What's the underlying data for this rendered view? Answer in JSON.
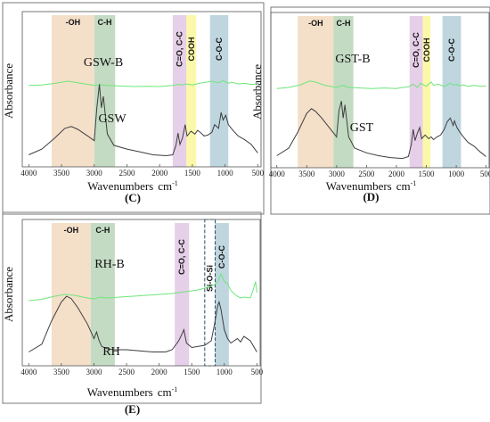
{
  "chart_data": [
    {
      "id": "C",
      "type": "line",
      "panel_label": "(C)",
      "xlabel": "Wavenumbers",
      "xunit": "cm",
      "xunit_sup": "-1",
      "ylabel": "Absorbance",
      "xlim": [
        4100,
        450
      ],
      "x_reversed": true,
      "ticks": [
        4000,
        3500,
        3000,
        2500,
        2000,
        1500,
        1000,
        500
      ],
      "tick_labels": [
        "4000",
        "3500",
        "3000",
        "2500",
        "2000",
        "1500",
        "1000",
        "500"
      ],
      "bands": [
        {
          "label": "-OH",
          "from": 3650,
          "to": 3000,
          "color": "#f3dcc3",
          "vertical": false
        },
        {
          "label": "C-H",
          "from": 3000,
          "to": 2680,
          "color": "#bcd7bd",
          "vertical": false
        },
        {
          "label": "C=O, C-C",
          "from": 1800,
          "to": 1590,
          "color": "#e3cae6",
          "vertical": true
        },
        {
          "label": "COOH",
          "from": 1590,
          "to": 1440,
          "color": "#fbf7a0",
          "vertical": true
        },
        {
          "label": "C-O-C",
          "from": 1230,
          "to": 950,
          "color": "#b8d2db",
          "vertical": true
        }
      ],
      "series": [
        {
          "name": "GSW-B",
          "color": "#6ee67a",
          "x": [
            4000,
            3800,
            3600,
            3400,
            3200,
            3000,
            2900,
            2800,
            2600,
            2400,
            2200,
            2000,
            1900,
            1800,
            1720,
            1650,
            1600,
            1500,
            1400,
            1300,
            1200,
            1100,
            1030,
            950,
            900,
            800,
            700,
            600,
            500
          ],
          "y": [
            0.72,
            0.73,
            0.76,
            0.8,
            0.76,
            0.72,
            0.735,
            0.72,
            0.71,
            0.7,
            0.705,
            0.7,
            0.71,
            0.72,
            0.74,
            0.73,
            0.75,
            0.73,
            0.76,
            0.78,
            0.8,
            0.77,
            0.81,
            0.76,
            0.78,
            0.75,
            0.76,
            0.74,
            0.75
          ]
        },
        {
          "name": "GSW",
          "color": "#3d3d3d",
          "x": [
            4000,
            3800,
            3600,
            3450,
            3350,
            3250,
            3100,
            3000,
            2960,
            2920,
            2890,
            2860,
            2800,
            2700,
            2500,
            2300,
            2100,
            1900,
            1800,
            1750,
            1720,
            1690,
            1650,
            1610,
            1580,
            1520,
            1460,
            1420,
            1380,
            1320,
            1260,
            1200,
            1160,
            1100,
            1060,
            1030,
            990,
            950,
            880,
            800,
            700,
            600,
            500
          ],
          "y": [
            0.1,
            0.16,
            0.28,
            0.38,
            0.4,
            0.37,
            0.3,
            0.25,
            0.6,
            0.85,
            0.6,
            0.72,
            0.32,
            0.2,
            0.16,
            0.13,
            0.1,
            0.09,
            0.1,
            0.2,
            0.33,
            0.21,
            0.28,
            0.42,
            0.3,
            0.35,
            0.32,
            0.36,
            0.34,
            0.3,
            0.31,
            0.34,
            0.42,
            0.38,
            0.55,
            0.47,
            0.52,
            0.42,
            0.36,
            0.3,
            0.26,
            0.21,
            0.12
          ]
        }
      ],
      "annotations": [
        "GSW-B",
        "GSW"
      ]
    },
    {
      "id": "D",
      "type": "line",
      "panel_label": "(D)",
      "xlabel": "Wavenumbers",
      "xunit": "cm",
      "xunit_sup": "-1",
      "ylabel": "Absorbance",
      "xlim": [
        4100,
        450
      ],
      "x_reversed": true,
      "ticks": [
        4000,
        3500,
        3000,
        2500,
        2000,
        1500,
        1000,
        500
      ],
      "tick_labels": [
        "4000",
        "3500",
        "3000",
        "2500",
        "2000",
        "1500",
        "1000",
        "500"
      ],
      "bands": [
        {
          "label": "-OH",
          "from": 3650,
          "to": 3050,
          "color": "#f3dcc3",
          "vertical": false
        },
        {
          "label": "C-H",
          "from": 3050,
          "to": 2720,
          "color": "#bcd7bd",
          "vertical": false
        },
        {
          "label": "C=O, C-C",
          "from": 1780,
          "to": 1560,
          "color": "#e3cae6",
          "vertical": true
        },
        {
          "label": "COOH",
          "from": 1560,
          "to": 1430,
          "color": "#fbf7a0",
          "vertical": true
        },
        {
          "label": "C-O-C",
          "from": 1230,
          "to": 920,
          "color": "#b8d2db",
          "vertical": true
        }
      ],
      "series": [
        {
          "name": "GST-B",
          "color": "#6ee67a",
          "x": [
            4000,
            3800,
            3600,
            3450,
            3350,
            3200,
            3000,
            2900,
            2800,
            2600,
            2400,
            2200,
            2000,
            1900,
            1800,
            1720,
            1650,
            1600,
            1500,
            1420,
            1380,
            1300,
            1200,
            1100,
            1050,
            1000,
            950,
            880,
            800,
            700,
            600,
            500
          ],
          "y": [
            0.68,
            0.7,
            0.75,
            0.82,
            0.8,
            0.74,
            0.7,
            0.74,
            0.7,
            0.69,
            0.68,
            0.69,
            0.68,
            0.7,
            0.71,
            0.76,
            0.7,
            0.78,
            0.72,
            0.8,
            0.74,
            0.76,
            0.72,
            0.78,
            0.74,
            0.76,
            0.73,
            0.75,
            0.72,
            0.74,
            0.72,
            0.73
          ]
        },
        {
          "name": "GST",
          "color": "#3d3d3d",
          "x": [
            4000,
            3800,
            3650,
            3500,
            3420,
            3350,
            3250,
            3100,
            3000,
            2960,
            2920,
            2890,
            2860,
            2800,
            2700,
            2500,
            2300,
            2100,
            1900,
            1800,
            1750,
            1720,
            1690,
            1650,
            1610,
            1580,
            1520,
            1460,
            1420,
            1380,
            1320,
            1260,
            1200,
            1150,
            1100,
            1050,
            1030,
            990,
            950,
            880,
            800,
            700,
            600,
            500
          ],
          "y": [
            0.1,
            0.18,
            0.35,
            0.55,
            0.6,
            0.57,
            0.5,
            0.38,
            0.3,
            0.58,
            0.68,
            0.5,
            0.64,
            0.3,
            0.18,
            0.13,
            0.1,
            0.08,
            0.07,
            0.09,
            0.22,
            0.38,
            0.26,
            0.34,
            0.4,
            0.28,
            0.32,
            0.28,
            0.3,
            0.27,
            0.3,
            0.32,
            0.38,
            0.46,
            0.5,
            0.42,
            0.47,
            0.4,
            0.36,
            0.3,
            0.24,
            0.2,
            0.14,
            0.09
          ]
        }
      ],
      "annotations": [
        "GST-B",
        "GST"
      ]
    },
    {
      "id": "E",
      "type": "line",
      "panel_label": "(E)",
      "xlabel": "Wavenumbers",
      "xunit": "cm",
      "xunit_sup": "-1",
      "ylabel": "Absorbance",
      "xlim": [
        4100,
        450
      ],
      "x_reversed": true,
      "ticks": [
        4000,
        3500,
        3000,
        2500,
        2000,
        1500,
        1000,
        500
      ],
      "tick_labels": [
        "4000",
        "3500",
        "3000",
        "2500",
        "2000",
        "1500",
        "1000",
        "500"
      ],
      "bands": [
        {
          "label": "-OH",
          "from": 3650,
          "to": 3050,
          "color": "#f3dcc3",
          "vertical": false
        },
        {
          "label": "C-H",
          "from": 3050,
          "to": 2680,
          "color": "#bcd7bd",
          "vertical": false
        },
        {
          "label": "C=O, C-C",
          "from": 1760,
          "to": 1540,
          "color": "#e3cae6",
          "vertical": true
        },
        {
          "label": "C-O-C",
          "from": 1140,
          "to": 930,
          "color": "#b8d2db",
          "vertical": true
        }
      ],
      "dashed_boxes": [
        {
          "label": "Si-O-Si",
          "from": 1300,
          "to": 1140
        }
      ],
      "series": [
        {
          "name": "RH-B",
          "color": "#6ee67a",
          "x": [
            4000,
            3800,
            3600,
            3450,
            3300,
            3100,
            3000,
            2900,
            2800,
            2600,
            2400,
            2200,
            2000,
            1800,
            1700,
            1600,
            1500,
            1400,
            1300,
            1200,
            1150,
            1100,
            1050,
            1000,
            950,
            900,
            850,
            800,
            750,
            700,
            600,
            560,
            520,
            500
          ],
          "y": [
            0.52,
            0.55,
            0.62,
            0.66,
            0.64,
            0.58,
            0.56,
            0.6,
            0.58,
            0.6,
            0.62,
            0.64,
            0.66,
            0.68,
            0.7,
            0.72,
            0.74,
            0.76,
            0.8,
            0.85,
            0.88,
            0.95,
            1.12,
            0.95,
            0.9,
            0.75,
            0.68,
            0.62,
            0.58,
            0.6,
            0.58,
            0.75,
            0.95,
            0.7
          ]
        },
        {
          "name": "RH",
          "color": "#3d3d3d",
          "x": [
            4000,
            3800,
            3650,
            3500,
            3420,
            3350,
            3250,
            3100,
            3000,
            2960,
            2920,
            2880,
            2800,
            2700,
            2500,
            2300,
            2100,
            1900,
            1800,
            1700,
            1650,
            1620,
            1580,
            1500,
            1400,
            1300,
            1200,
            1150,
            1100,
            1080,
            1050,
            1000,
            950,
            900,
            850,
            800,
            750,
            700,
            600,
            500
          ],
          "y": [
            0.1,
            0.17,
            0.38,
            0.55,
            0.6,
            0.58,
            0.5,
            0.35,
            0.22,
            0.28,
            0.2,
            0.15,
            0.13,
            0.12,
            0.12,
            0.11,
            0.1,
            0.1,
            0.12,
            0.2,
            0.26,
            0.3,
            0.18,
            0.14,
            0.15,
            0.16,
            0.2,
            0.35,
            0.52,
            0.55,
            0.48,
            0.3,
            0.22,
            0.18,
            0.2,
            0.22,
            0.19,
            0.24,
            0.2,
            0.1
          ]
        }
      ],
      "annotations": [
        "RH-B",
        "RH"
      ]
    }
  ]
}
